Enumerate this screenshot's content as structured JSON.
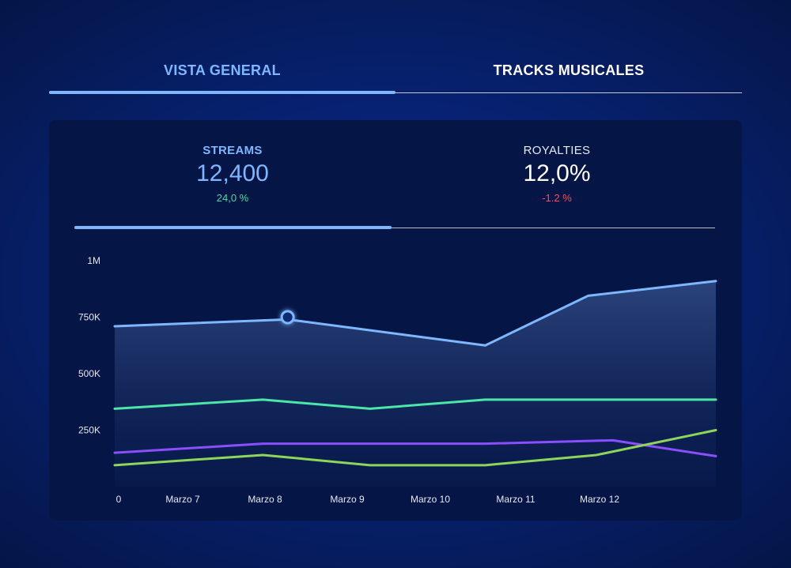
{
  "tabs": [
    {
      "label": "VISTA GENERAL",
      "active": true
    },
    {
      "label": "TRACKS MUSICALES",
      "active": false
    }
  ],
  "metrics": [
    {
      "label": "STREAMS",
      "value": "12,400",
      "change": "24,0 %",
      "active": true
    },
    {
      "label": "ROYALTIES",
      "value": "12,0%",
      "change": "-1.2 %",
      "active": false
    }
  ],
  "colors": {
    "accent": "#7db8ff",
    "positive": "#3fe0a0",
    "negative": "#ff4d5e",
    "series_blue": "#7db8ff",
    "series_teal": "#4ce6a8",
    "series_purple": "#8a4dff",
    "series_green": "#8ed65a"
  },
  "chart_data": {
    "type": "line",
    "title": "",
    "xlabel": "",
    "ylabel": "",
    "x_tick_labels": [
      "0",
      "Marzo 7",
      "Marzo 8",
      "Marzo 9",
      "Marzo 10",
      "Marzo 11",
      "Marzo 12"
    ],
    "y_tick_labels": [
      "1M",
      "750K",
      "500K",
      "250K"
    ],
    "y_ticks": [
      1000000,
      750000,
      500000,
      250000
    ],
    "ylim": [
      0,
      1000000
    ],
    "xlim": [
      0,
      7.3
    ],
    "grid": false,
    "legend": "none",
    "highlight": {
      "series_index": 0,
      "x": 2.1,
      "y": 750000
    },
    "series": [
      {
        "color": "#7db8ff",
        "fill": true,
        "points": [
          [
            0,
            710000
          ],
          [
            2.1,
            740000
          ],
          [
            4.5,
            625000
          ],
          [
            5.75,
            845000
          ],
          [
            7.3,
            910000
          ]
        ]
      },
      {
        "color": "#4ce6a8",
        "fill": false,
        "points": [
          [
            0,
            345000
          ],
          [
            1.8,
            385000
          ],
          [
            3.1,
            345000
          ],
          [
            4.5,
            385000
          ],
          [
            7.3,
            385000
          ]
        ]
      },
      {
        "color": "#8a4dff",
        "fill": false,
        "points": [
          [
            0,
            150000
          ],
          [
            1.8,
            190000
          ],
          [
            4.5,
            190000
          ],
          [
            6.05,
            205000
          ],
          [
            7.3,
            135000
          ]
        ]
      },
      {
        "color": "#8ed65a",
        "fill": false,
        "points": [
          [
            0,
            95000
          ],
          [
            1.8,
            140000
          ],
          [
            3.1,
            95000
          ],
          [
            4.5,
            95000
          ],
          [
            5.85,
            140000
          ],
          [
            7.3,
            250000
          ]
        ]
      }
    ]
  }
}
